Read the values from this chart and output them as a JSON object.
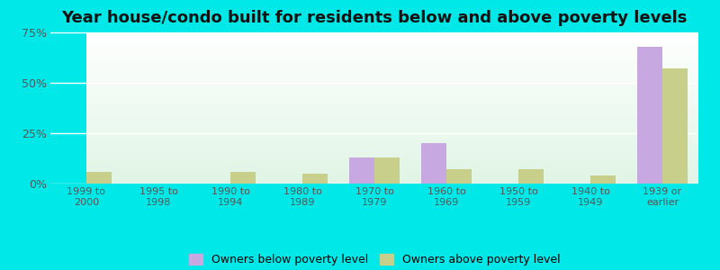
{
  "title": "Year house/condo built for residents below and above poverty levels",
  "categories": [
    "1999 to\n2000",
    "1995 to\n1998",
    "1990 to\n1994",
    "1980 to\n1989",
    "1970 to\n1979",
    "1960 to\n1969",
    "1950 to\n1959",
    "1940 to\n1949",
    "1939 or\nearlier"
  ],
  "below_poverty": [
    0,
    0,
    0,
    0,
    13,
    20,
    0,
    0,
    68
  ],
  "above_poverty": [
    6,
    0,
    6,
    5,
    13,
    7,
    7,
    4,
    57
  ],
  "below_color": "#c8a8e0",
  "above_color": "#c8cf8a",
  "outer_bg": "#00e8e8",
  "ylim": [
    0,
    75
  ],
  "yticks": [
    0,
    25,
    50,
    75
  ],
  "yticklabels": [
    "0%",
    "25%",
    "50%",
    "75%"
  ],
  "legend_below": "Owners below poverty level",
  "legend_above": "Owners above poverty level",
  "title_fontsize": 13,
  "bar_width": 0.35,
  "grid_color": "#e8e8e8",
  "tick_color": "#555555"
}
